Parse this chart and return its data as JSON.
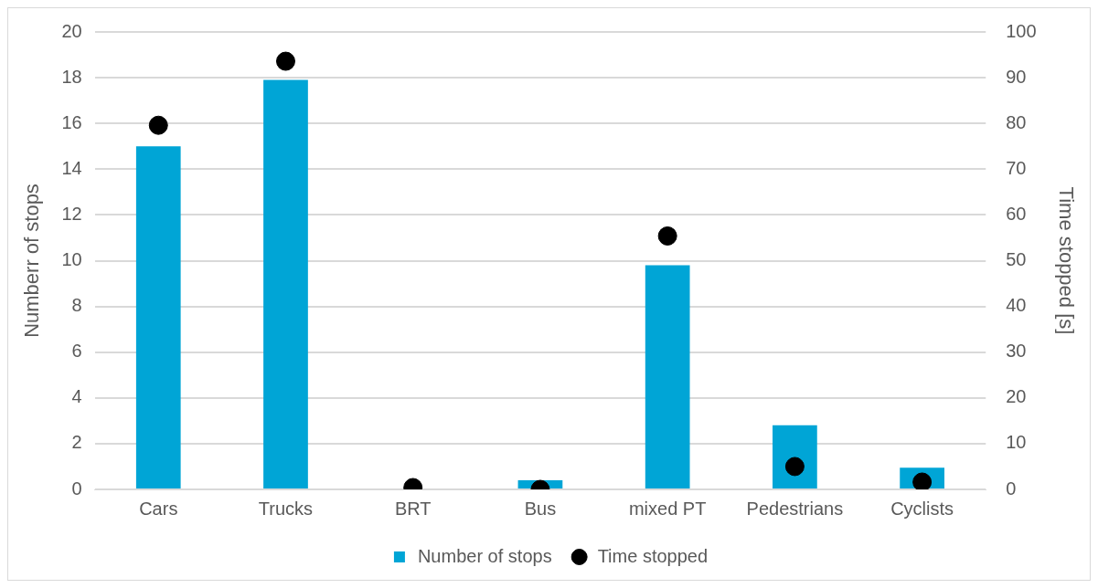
{
  "chart_data": {
    "type": "bar",
    "ylabel": "Numberr of stops",
    "y2label": "Time stopped [s]",
    "categories": [
      "Cars",
      "Trucks",
      "BRT",
      "Bus",
      "mixed PT",
      "Pedestrians",
      "Cyclists"
    ],
    "series": [
      {
        "name": "Number of stops",
        "color": "#00a5d6",
        "values": [
          15,
          17.9,
          0,
          0.4,
          9.8,
          2.8,
          0.95
        ]
      },
      {
        "name": "Time stopped",
        "type": "scatter",
        "axis": "y2",
        "color": "#000000",
        "values": [
          79.6,
          93.6,
          0.4,
          0,
          55.4,
          5,
          1.6
        ]
      }
    ],
    "ylim": [
      0,
      20
    ],
    "yticks": [
      0,
      2,
      4,
      6,
      8,
      10,
      12,
      14,
      16,
      18,
      20
    ],
    "y2lim": [
      0,
      100
    ],
    "y2ticks": [
      0,
      10,
      20,
      30,
      40,
      50,
      60,
      70,
      80,
      90,
      100
    ],
    "grid": "y",
    "legend": "bottom",
    "marker": "circle"
  }
}
